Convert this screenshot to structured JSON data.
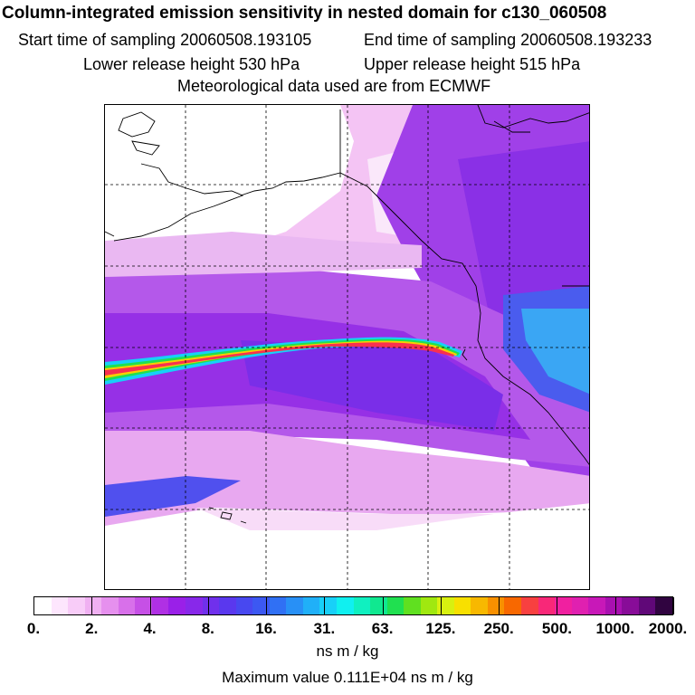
{
  "header": {
    "title": "Column-integrated emission sensitivity in nested domain for c130_060508",
    "start_label": "Start time of sampling 20060508.193105",
    "end_label": "End time of sampling 20060508.193233",
    "lower_label": "Lower release height  530 hPa",
    "upper_label": "Upper release height  515 hPa",
    "met_label": "Meteorological data used are from ECMWF"
  },
  "colorbar": {
    "tick_labels": [
      "0.",
      "2.",
      "4.",
      "8.",
      "16.",
      "31.",
      "63.",
      "125.",
      "250.",
      "500.",
      "1000.",
      "2000."
    ],
    "colors": [
      "#ffffff",
      "#fde6fd",
      "#f8ccf8",
      "#f0b0f2",
      "#e690ee",
      "#d870ea",
      "#c650e6",
      "#b030e4",
      "#9a20e8",
      "#8828ea",
      "#7030ec",
      "#5a38ee",
      "#4848f0",
      "#3c58f2",
      "#3070f4",
      "#2890f6",
      "#20b0f8",
      "#18d0f8",
      "#10f0f0",
      "#10f0c0",
      "#10e890",
      "#20e050",
      "#60e020",
      "#a0e810",
      "#d8f010",
      "#f8e000",
      "#f8b800",
      "#f89000",
      "#f86800",
      "#f84040",
      "#f82878",
      "#f020a0",
      "#e020b0",
      "#c818b8",
      "#a810b0",
      "#880c98",
      "#600878",
      "#300440"
    ],
    "units": "ns m / kg"
  },
  "footer": {
    "max_value": "Maximum value  0.111E+04 ns m / kg"
  }
}
